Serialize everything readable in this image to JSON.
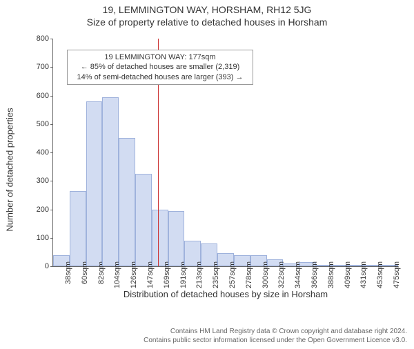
{
  "title": "19, LEMMINGTON WAY, HORSHAM, RH12 5JG",
  "subtitle": "Size of property relative to detached houses in Horsham",
  "y_axis_label": "Number of detached properties",
  "x_axis_label": "Distribution of detached houses by size in Horsham",
  "footer_line1": "Contains HM Land Registry data © Crown copyright and database right 2024.",
  "footer_line2": "Contains public sector information licensed under the Open Government Licence v3.0.",
  "chart": {
    "type": "histogram",
    "ylim": [
      0,
      800
    ],
    "ytick_step": 100,
    "bar_fill": "#d2dcf2",
    "bar_stroke": "#9fb2dc",
    "marker_color": "#cc3333",
    "background_color": "#ffffff",
    "axis_color": "#666666",
    "tick_font_size": 11,
    "categories": [
      "38sqm",
      "60sqm",
      "82sqm",
      "104sqm",
      "126sqm",
      "147sqm",
      "169sqm",
      "191sqm",
      "213sqm",
      "235sqm",
      "257sqm",
      "278sqm",
      "300sqm",
      "322sqm",
      "344sqm",
      "366sqm",
      "388sqm",
      "409sqm",
      "431sqm",
      "453sqm",
      "475sqm"
    ],
    "values": [
      40,
      265,
      580,
      595,
      450,
      325,
      200,
      195,
      90,
      80,
      45,
      40,
      40,
      25,
      10,
      15,
      5,
      5,
      3,
      3,
      2
    ],
    "marker_index": 6.4,
    "annotation": {
      "line1": "19 LEMMINGTON WAY: 177sqm",
      "line2": "← 85% of detached houses are smaller (2,319)",
      "line3": "14% of semi-detached houses are larger (393) →"
    }
  }
}
